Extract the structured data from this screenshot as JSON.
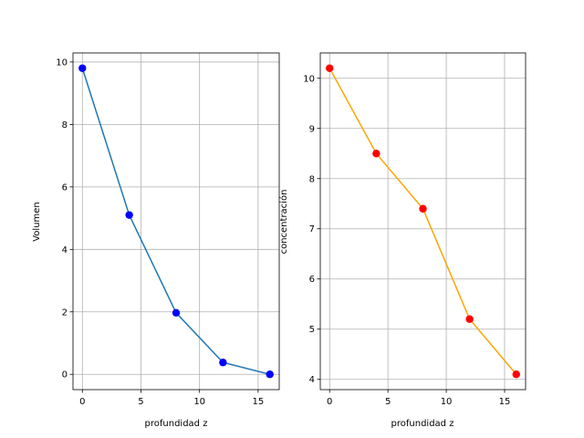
{
  "chart_data": [
    {
      "type": "line",
      "title": "",
      "xlabel": "profundidad z",
      "ylabel": "Volumen",
      "xlim": [
        -0.8,
        16.8
      ],
      "ylim": [
        -0.49,
        10.29
      ],
      "xticks": [
        0,
        5,
        10,
        15
      ],
      "yticks": [
        0,
        2,
        4,
        6,
        8,
        10
      ],
      "grid": true,
      "series": [
        {
          "x": [
            0,
            4,
            8,
            12,
            16
          ],
          "y": [
            9.8,
            5.1,
            1.97,
            0.38,
            0.0
          ],
          "line_color": "#1f77b4",
          "marker_color": "#0000ff"
        }
      ]
    },
    {
      "type": "line",
      "title": "",
      "xlabel": "profundidad z",
      "ylabel": "concentración",
      "xlim": [
        -0.8,
        16.8
      ],
      "ylim": [
        3.795,
        10.505
      ],
      "xticks": [
        0,
        5,
        10,
        15
      ],
      "yticks": [
        4,
        5,
        6,
        7,
        8,
        9,
        10
      ],
      "grid": true,
      "series": [
        {
          "x": [
            0,
            4,
            8,
            12,
            16
          ],
          "y": [
            10.2,
            8.5,
            7.4,
            5.2,
            4.1
          ],
          "line_color": "#ffa500",
          "marker_color": "#ff0000"
        }
      ]
    }
  ]
}
